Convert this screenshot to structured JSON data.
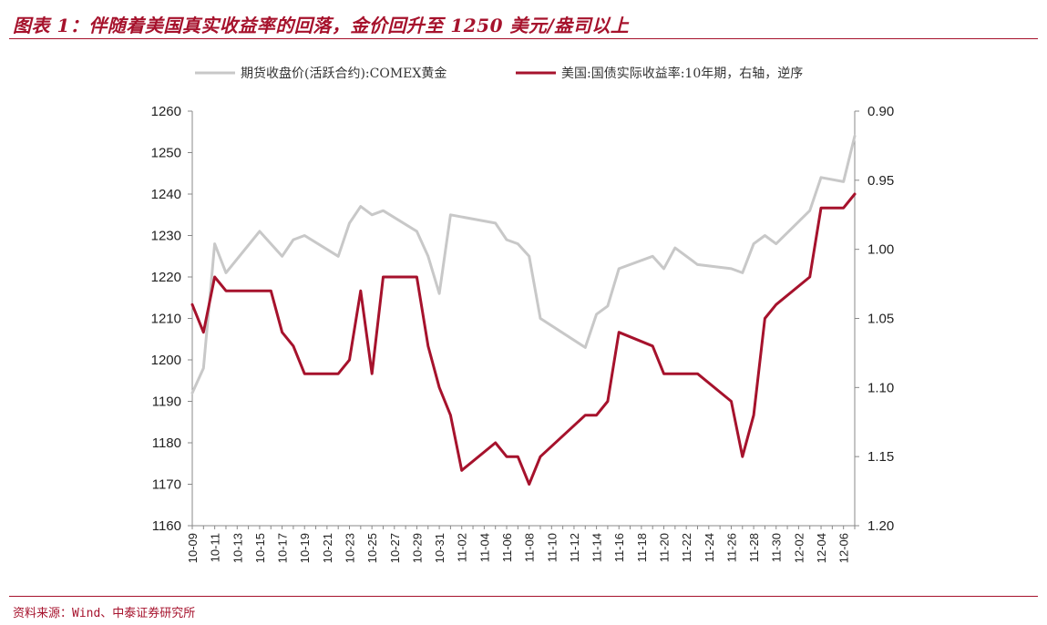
{
  "title": "图表 1：伴随着美国真实收益率的回落，金价回升至 1250 美元/盎司以上",
  "source": "资料来源：Wind、中泰证券研究所",
  "chart_data": {
    "type": "line",
    "x": [
      "10-09",
      "10-10",
      "10-11",
      "10-12",
      "10-13",
      "10-14",
      "10-15",
      "10-16",
      "10-17",
      "10-18",
      "10-19",
      "10-20",
      "10-21",
      "10-22",
      "10-23",
      "10-24",
      "10-25",
      "10-26",
      "10-27",
      "10-28",
      "10-29",
      "10-30",
      "10-31",
      "11-01",
      "11-02",
      "11-03",
      "11-04",
      "11-05",
      "11-06",
      "11-07",
      "11-08",
      "11-09",
      "11-10",
      "11-11",
      "11-12",
      "11-13",
      "11-14",
      "11-15",
      "11-16",
      "11-17",
      "11-18",
      "11-19",
      "11-20",
      "11-21",
      "11-22",
      "11-23",
      "11-24",
      "11-25",
      "11-26",
      "11-27",
      "11-28",
      "11-29",
      "11-30",
      "12-01",
      "12-02",
      "12-03",
      "12-04",
      "12-05",
      "12-06",
      "12-07"
    ],
    "x_tick_labels": [
      "10-09",
      "10-11",
      "10-13",
      "10-15",
      "10-17",
      "10-19",
      "10-21",
      "10-23",
      "10-25",
      "10-27",
      "10-29",
      "10-31",
      "11-02",
      "11-04",
      "11-06",
      "11-08",
      "11-10",
      "11-12",
      "11-14",
      "11-16",
      "11-18",
      "11-20",
      "11-22",
      "11-24",
      "11-26",
      "11-28",
      "11-30",
      "12-02",
      "12-04",
      "12-06"
    ],
    "y_left": {
      "range": [
        1160,
        1260
      ],
      "ticks": [
        "1160",
        "1170",
        "1180",
        "1190",
        "1200",
        "1210",
        "1220",
        "1230",
        "1240",
        "1250",
        "1260"
      ]
    },
    "y_right": {
      "range": [
        0.9,
        1.2
      ],
      "inverted": true,
      "ticks": [
        "0.90",
        "0.95",
        "1.00",
        "1.05",
        "1.10",
        "1.15",
        "1.20"
      ]
    },
    "legend_position": "top",
    "series": [
      {
        "name": "期货收盘价(活跃合约):COMEX黄金",
        "axis": "left",
        "color": "#c8c8c8",
        "points": [
          [
            "10-09",
            1192
          ],
          [
            "10-10",
            1198
          ],
          [
            "10-11",
            1228
          ],
          [
            "10-12",
            1221
          ],
          [
            "10-15",
            1231
          ],
          [
            "10-16",
            1228
          ],
          [
            "10-17",
            1225
          ],
          [
            "10-18",
            1229
          ],
          [
            "10-19",
            1230
          ],
          [
            "10-22",
            1225
          ],
          [
            "10-23",
            1233
          ],
          [
            "10-24",
            1237
          ],
          [
            "10-25",
            1235
          ],
          [
            "10-26",
            1236
          ],
          [
            "10-29",
            1231
          ],
          [
            "10-30",
            1225
          ],
          [
            "10-31",
            1216
          ],
          [
            "11-01",
            1235
          ],
          [
            "11-05",
            1233
          ],
          [
            "11-06",
            1229
          ],
          [
            "11-07",
            1228
          ],
          [
            "11-08",
            1225
          ],
          [
            "11-09",
            1210
          ],
          [
            "11-13",
            1203
          ],
          [
            "11-14",
            1211
          ],
          [
            "11-15",
            1213
          ],
          [
            "11-16",
            1222
          ],
          [
            "11-19",
            1225
          ],
          [
            "11-20",
            1222
          ],
          [
            "11-21",
            1227
          ],
          [
            "11-23",
            1223
          ],
          [
            "11-26",
            1222
          ],
          [
            "11-27",
            1221
          ],
          [
            "11-28",
            1228
          ],
          [
            "11-29",
            1230
          ],
          [
            "11-30",
            1228
          ],
          [
            "12-03",
            1236
          ],
          [
            "12-04",
            1244
          ],
          [
            "12-06",
            1243
          ],
          [
            "12-07",
            1254
          ]
        ]
      },
      {
        "name": "美国:国债实际收益率:10年期，右轴，逆序",
        "axis": "right",
        "color": "#a6122c",
        "points": [
          [
            "10-09",
            1.04
          ],
          [
            "10-10",
            1.06
          ],
          [
            "10-11",
            1.02
          ],
          [
            "10-12",
            1.03
          ],
          [
            "10-15",
            1.03
          ],
          [
            "10-16",
            1.03
          ],
          [
            "10-17",
            1.06
          ],
          [
            "10-18",
            1.07
          ],
          [
            "10-19",
            1.09
          ],
          [
            "10-22",
            1.09
          ],
          [
            "10-23",
            1.08
          ],
          [
            "10-24",
            1.03
          ],
          [
            "10-25",
            1.09
          ],
          [
            "10-26",
            1.02
          ],
          [
            "10-29",
            1.02
          ],
          [
            "10-30",
            1.07
          ],
          [
            "10-31",
            1.1
          ],
          [
            "11-01",
            1.12
          ],
          [
            "11-02",
            1.16
          ],
          [
            "11-05",
            1.14
          ],
          [
            "11-06",
            1.15
          ],
          [
            "11-07",
            1.15
          ],
          [
            "11-08",
            1.17
          ],
          [
            "11-09",
            1.15
          ],
          [
            "11-13",
            1.12
          ],
          [
            "11-14",
            1.12
          ],
          [
            "11-15",
            1.11
          ],
          [
            "11-16",
            1.06
          ],
          [
            "11-19",
            1.07
          ],
          [
            "11-20",
            1.09
          ],
          [
            "11-23",
            1.09
          ],
          [
            "11-26",
            1.11
          ],
          [
            "11-27",
            1.15
          ],
          [
            "11-28",
            1.12
          ],
          [
            "11-29",
            1.05
          ],
          [
            "11-30",
            1.04
          ],
          [
            "12-03",
            1.02
          ],
          [
            "12-04",
            0.97
          ],
          [
            "12-06",
            0.97
          ],
          [
            "12-07",
            0.96
          ]
        ]
      }
    ]
  }
}
